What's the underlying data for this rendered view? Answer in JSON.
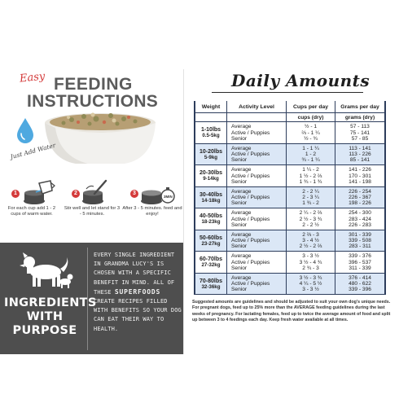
{
  "left": {
    "easy": "Easy",
    "heading_line1": "FEEDING",
    "heading_line2": "INSTRUCTIONS",
    "just_add_water": "Just Add Water",
    "steps": [
      {
        "number": "1",
        "text": "For each cup add 1 - 2 cups of warm water.",
        "icon": "measuring-cup-icon"
      },
      {
        "number": "2",
        "text": "Stir well and let stand for 3 - 5 minutes.",
        "icon": "spoon-stir-icon"
      },
      {
        "number": "3",
        "text": "After 3 - 5 minutes. feed and enjoy!",
        "icon": "bowl-timer-icon",
        "timer": "3MIN"
      }
    ],
    "ingredients_title_1": "INGREDIENTS",
    "ingredients_title_2": "WITH",
    "ingredients_title_3": "PURPOSE",
    "ingredients_text_a": "EVERY SINGLE INGREDIENT IN GRANDMA LUCY'S IS CHOSEN WITH A SPECIFIC BENEFIT IN MIND. ALL OF THESE",
    "ingredients_text_bold": "SUPERFOODS",
    "ingredients_text_b": "CREATE RECIPES FILLED WITH BENEFITS SO YOUR DOG CAN EAT THEIR WAY TO HEALTH.",
    "colors": {
      "accent_red": "#d43a3a",
      "band_gray": "#4e4e4e",
      "water_blue": "#4fa9e0"
    }
  },
  "right": {
    "title": "Daily Amounts",
    "table": {
      "headers": [
        "Weight",
        "Activity Level",
        "Cups per day",
        "Grams per day"
      ],
      "units": [
        "",
        "",
        "cups (dry)",
        "grams (dry)"
      ],
      "rows": [
        {
          "weight": "1-10lbs",
          "kg": "0.5-5kg",
          "activity": [
            "Average",
            "Active / Puppies",
            "Senior"
          ],
          "cups": [
            "½ - 1",
            "⅔ - 1 ¼",
            "½ - ¾"
          ],
          "grams": [
            "57 - 113",
            "75 - 141",
            "57 - 85"
          ]
        },
        {
          "weight": "10-20lbs",
          "kg": "5-9kg",
          "activity": [
            "Average",
            "Active / Puppies",
            "Senior"
          ],
          "cups": [
            "1 - 1 ¼",
            "1 - 2",
            "¾ - 1 ¼"
          ],
          "grams": [
            "113 - 141",
            "113 - 226",
            "85 - 141"
          ]
        },
        {
          "weight": "20-30lbs",
          "kg": "9-14kg",
          "activity": [
            "Average",
            "Active / Puppies",
            "Senior"
          ],
          "cups": [
            "1 ¼ - 2",
            "1 ½ - 2 ⅔",
            "1 ¾ - 1 ¾"
          ],
          "grams": [
            "141 - 226",
            "170 - 301",
            "141 - 198"
          ]
        },
        {
          "weight": "30-40lbs",
          "kg": "14-18kg",
          "activity": [
            "Average",
            "Active / Puppies",
            "Senior"
          ],
          "cups": [
            "2 - 2 ¼",
            "2 - 3 ¼",
            "1 ¾ - 2"
          ],
          "grams": [
            "226 - 254",
            "226 - 367",
            "198 - 226"
          ]
        },
        {
          "weight": "40-50lbs",
          "kg": "18-23kg",
          "activity": [
            "Average",
            "Active / Puppies",
            "Senior"
          ],
          "cups": [
            "2 ¼ - 2 ⅔",
            "2 ½ - 3 ¾",
            "2 - 2 ½"
          ],
          "grams": [
            "254 - 300",
            "283 - 424",
            "226 - 283"
          ]
        },
        {
          "weight": "50-60lbs",
          "kg": "23-27kg",
          "activity": [
            "Average",
            "Active / Puppies",
            "Senior"
          ],
          "cups": [
            "2 ⅔ - 3",
            "3 - 4 ½",
            "2 ½ - 2 ⅔"
          ],
          "grams": [
            "301 - 339",
            "339 - 508",
            "283 - 311"
          ]
        },
        {
          "weight": "60-70lbs",
          "kg": "27-32kg",
          "activity": [
            "Average",
            "Active / Puppies",
            "Senior"
          ],
          "cups": [
            "3 - 3 ½",
            "3 ½ - 4 ¾",
            "2 ¾ - 3"
          ],
          "grams": [
            "339 - 376",
            "396 - 537",
            "311 - 339"
          ]
        },
        {
          "weight": "70-80lbs",
          "kg": "32-36kg",
          "activity": [
            "Average",
            "Active / Puppies",
            "Senior"
          ],
          "cups": [
            "3 ½ - 3 ¾",
            "4 ¼ - 5 ½",
            "3 - 3 ½"
          ],
          "grams": [
            "376 - 414",
            "480 - 622",
            "339 - 396"
          ]
        }
      ],
      "colors": {
        "border": "#2d3d5c",
        "row_white": "#ffffff",
        "row_blue": "#dbe7f6"
      }
    },
    "note": "Suggested amounts are guidelines and should be adjusted to suit your own dog's unique needs. For pregnant dogs, feed up to 25% more than the AVERAGE feeding guidelines during the last weeks of pregnancy. For lactating females, feed up to twice the average amount of food and split up between 3 to 4 feedings each day. Keep fresh water available at all times."
  }
}
